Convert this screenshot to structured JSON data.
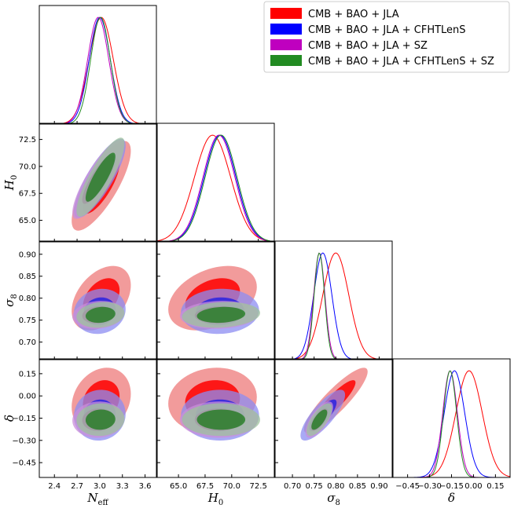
{
  "chart_data": {
    "type": "triangle",
    "description_params": [
      "N_eff",
      "H_0",
      "sigma_8",
      "delta"
    ],
    "params": [
      {
        "key": "neff",
        "label_main": "N",
        "label_sub": "eff",
        "range": [
          2.2,
          3.75
        ],
        "ticks": [
          2.4,
          2.7,
          3.0,
          3.3,
          3.6
        ],
        "tick_labels": [
          "2.4",
          "2.7",
          "3.0",
          "3.3",
          "3.6"
        ]
      },
      {
        "key": "h0",
        "label_main": "H",
        "label_sub": "0",
        "range": [
          63.0,
          74.0
        ],
        "ticks": [
          65.0,
          67.5,
          70.0,
          72.5
        ],
        "tick_labels": [
          "65.0",
          "67.5",
          "70.0",
          "72.5"
        ]
      },
      {
        "key": "s8",
        "label_main": "σ",
        "label_sub": "8",
        "range": [
          0.66,
          0.93
        ],
        "ticks": [
          0.7,
          0.75,
          0.8,
          0.85,
          0.9
        ],
        "tick_labels": [
          "0.70",
          "0.75",
          "0.80",
          "0.85",
          "0.90"
        ]
      },
      {
        "key": "delta",
        "label_main": "δ",
        "label_sub": "",
        "range": [
          -0.55,
          0.25
        ],
        "ticks": [
          -0.45,
          -0.3,
          -0.15,
          0.0,
          0.15
        ],
        "tick_labels": [
          "−0.45",
          "−0.30",
          "−0.15",
          "0.00",
          "0.15"
        ]
      }
    ],
    "series": [
      {
        "name": "CMB + BAO + JLA",
        "color": "#ff0000",
        "light": "#f08a8a",
        "dark": "#ff0000",
        "mean": [
          3.02,
          68.2,
          0.8,
          -0.03
        ],
        "sigma": [
          0.16,
          1.7,
          0.03,
          0.09
        ],
        "corr": [
          [
            1,
            0.78,
            0.4,
            0.2
          ],
          [
            0.78,
            1,
            0.35,
            0.1
          ],
          [
            0.4,
            0.35,
            1,
            0.88
          ],
          [
            0.2,
            0.1,
            0.88,
            1
          ]
        ]
      },
      {
        "name": "CMB + BAO + JLA + CFHTLenS",
        "color": "#0000ff",
        "light": "#8c8cf2",
        "dark": "#1a1ae6",
        "mean": [
          3.0,
          68.9,
          0.77,
          -0.13
        ],
        "sigma": [
          0.14,
          1.5,
          0.021,
          0.07
        ],
        "corr": [
          [
            1,
            0.82,
            0.1,
            0.05
          ],
          [
            0.82,
            1,
            0.05,
            0.0
          ],
          [
            0.1,
            0.05,
            1,
            0.8
          ],
          [
            0.05,
            0.0,
            0.8,
            1
          ]
        ]
      },
      {
        "name": "CMB + BAO + JLA + SZ",
        "color": "#bf00bf",
        "light": "#c98fd9",
        "dark": "#b01bb0",
        "mean": [
          2.98,
          68.8,
          0.762,
          -0.16
        ],
        "sigma": [
          0.14,
          1.5,
          0.013,
          0.05
        ],
        "corr": [
          [
            1,
            0.84,
            0.12,
            0.05
          ],
          [
            0.84,
            1,
            0.08,
            0.0
          ],
          [
            0.12,
            0.08,
            1,
            0.7
          ],
          [
            0.05,
            0.0,
            0.7,
            1
          ]
        ]
      },
      {
        "name": "CMB + BAO + JLA + CFHTLenS + SZ",
        "color": "#228b22",
        "light": "#9ec29e",
        "dark": "#1a7a1a",
        "mean": [
          3.01,
          69.0,
          0.762,
          -0.16
        ],
        "sigma": [
          0.13,
          1.5,
          0.012,
          0.045
        ],
        "corr": [
          [
            1,
            0.85,
            0.15,
            0.05
          ],
          [
            0.85,
            1,
            0.15,
            0.0
          ],
          [
            0.15,
            0.15,
            1,
            0.7
          ],
          [
            0.05,
            0.0,
            0.7,
            1
          ]
        ]
      }
    ],
    "legend": {
      "location": "top-right"
    }
  }
}
